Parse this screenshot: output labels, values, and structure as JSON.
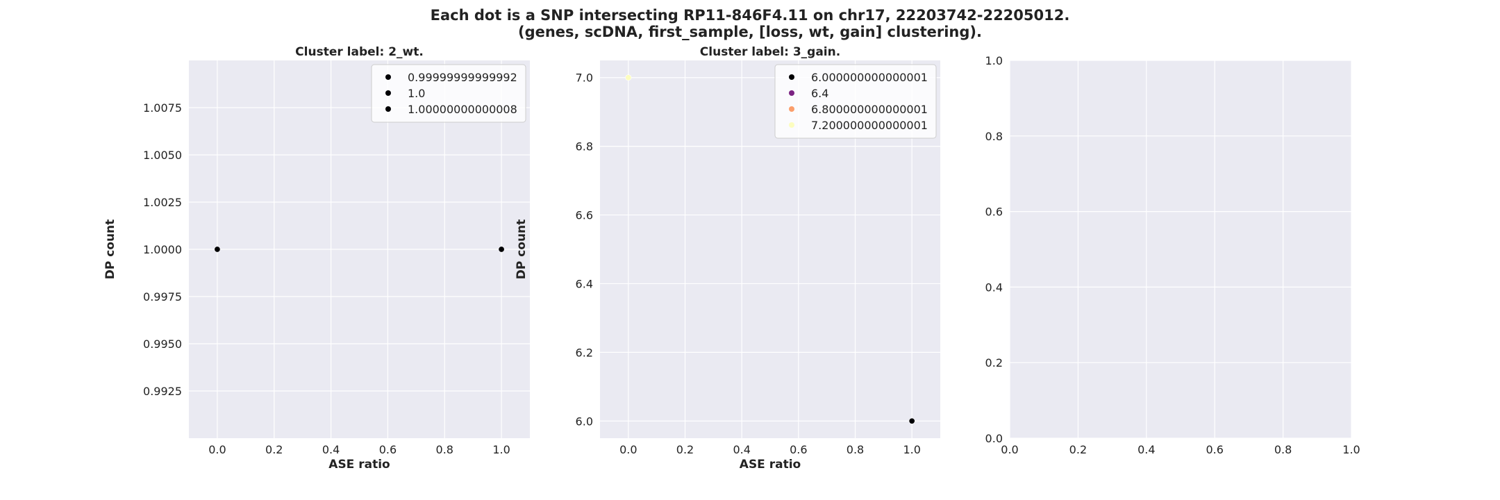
{
  "title_line1": "Each dot is a SNP intersecting RP11-846F4.11 on chr17, 22203742-22205012.",
  "title_line2": "(genes, scDNA, first_sample, [loss, wt, gain] clustering).",
  "colors": {
    "panel_bg": "#eaeaf2",
    "grid": "#ffffff",
    "text": "#222222"
  },
  "chart_data": [
    {
      "type": "scatter",
      "title": "Cluster label: 2_wt.",
      "xlabel": "ASE ratio",
      "ylabel": "DP count",
      "xlim": [
        -0.1,
        1.1
      ],
      "ylim": [
        0.99,
        1.01
      ],
      "xticks": [
        0.0,
        0.2,
        0.4,
        0.6,
        0.8,
        1.0
      ],
      "xticklabels": [
        "0.0",
        "0.2",
        "0.4",
        "0.6",
        "0.8",
        "1.0"
      ],
      "yticks": [
        0.9925,
        0.995,
        0.9975,
        1.0,
        1.0025,
        1.005,
        1.0075
      ],
      "yticklabels": [
        "0.9925",
        "0.9950",
        "0.9975",
        "1.0000",
        "1.0025",
        "1.0050",
        "1.0075"
      ],
      "grid": true,
      "legend_position": "top-right",
      "legend": [
        {
          "label": "0.99999999999992",
          "color": "#000004"
        },
        {
          "label": "1.0",
          "color": "#000004"
        },
        {
          "label": "1.00000000000008",
          "color": "#000004"
        }
      ],
      "points": [
        {
          "x": 0.0,
          "y": 1.0,
          "color": "#000004"
        },
        {
          "x": 1.0,
          "y": 1.0,
          "color": "#000004"
        }
      ]
    },
    {
      "type": "scatter",
      "title": "Cluster label: 3_gain.",
      "xlabel": "ASE ratio",
      "ylabel": "DP count",
      "xlim": [
        -0.1,
        1.1
      ],
      "ylim": [
        5.95,
        7.05
      ],
      "xticks": [
        0.0,
        0.2,
        0.4,
        0.6,
        0.8,
        1.0
      ],
      "xticklabels": [
        "0.0",
        "0.2",
        "0.4",
        "0.6",
        "0.8",
        "1.0"
      ],
      "yticks": [
        6.0,
        6.2,
        6.4,
        6.6,
        6.8,
        7.0
      ],
      "yticklabels": [
        "6.0",
        "6.2",
        "6.4",
        "6.6",
        "6.8",
        "7.0"
      ],
      "grid": true,
      "legend_position": "top-right",
      "legend": [
        {
          "label": "6.000000000000001",
          "color": "#000004"
        },
        {
          "label": "6.4",
          "color": "#7b2382"
        },
        {
          "label": "6.800000000000001",
          "color": "#fb9e6b"
        },
        {
          "label": "7.200000000000001",
          "color": "#fcfdbf"
        }
      ],
      "points": [
        {
          "x": 0.0,
          "y": 7.0,
          "color": "#fcfdbf"
        },
        {
          "x": 1.0,
          "y": 6.0,
          "color": "#000004"
        }
      ]
    },
    {
      "type": "scatter",
      "title": "",
      "xlabel": "",
      "ylabel": "",
      "xlim": [
        0,
        1
      ],
      "ylim": [
        0,
        1
      ],
      "xticks": [
        0.0,
        0.2,
        0.4,
        0.6,
        0.8,
        1.0
      ],
      "xticklabels": [
        "0.0",
        "0.2",
        "0.4",
        "0.6",
        "0.8",
        "1.0"
      ],
      "yticks": [
        0.0,
        0.2,
        0.4,
        0.6,
        0.8,
        1.0
      ],
      "yticklabels": [
        "0.0",
        "0.2",
        "0.4",
        "0.6",
        "0.8",
        "1.0"
      ],
      "grid": true,
      "legend_position": "",
      "legend": [],
      "points": []
    }
  ]
}
